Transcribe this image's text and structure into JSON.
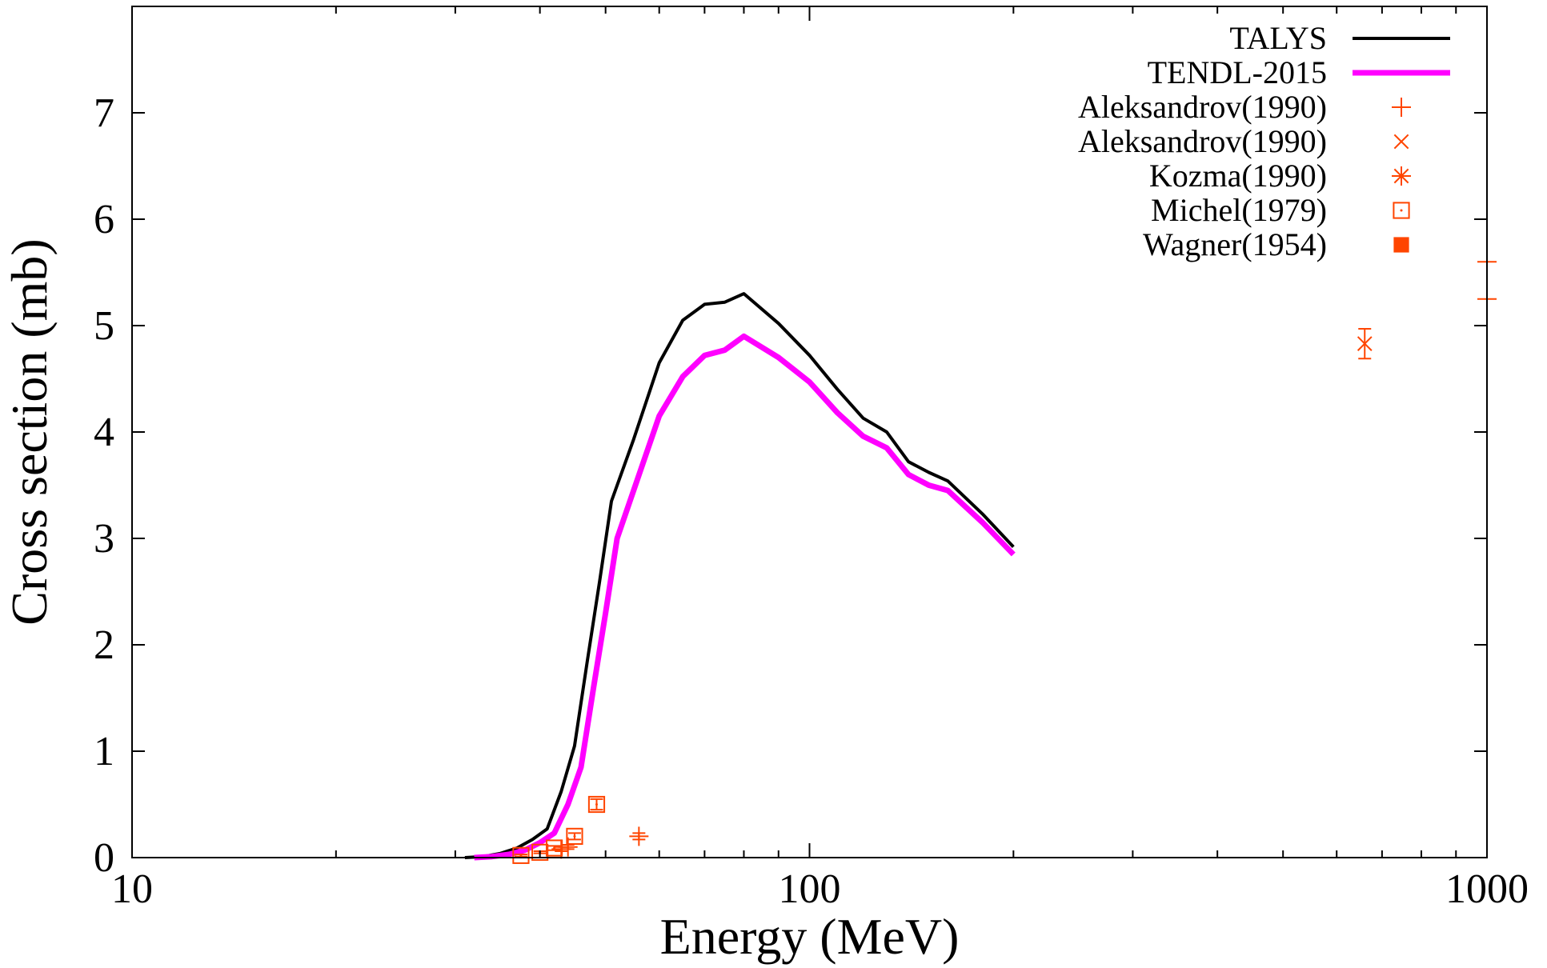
{
  "chart_data": {
    "type": "line",
    "xlabel": "Energy (MeV)",
    "ylabel": "Cross section (mb)",
    "xscale": "log",
    "xlim": [
      10,
      1000
    ],
    "ylim": [
      0,
      8
    ],
    "xticks": [
      10,
      100,
      1000
    ],
    "yticks": [
      0,
      1,
      2,
      3,
      4,
      5,
      6,
      7
    ],
    "grid": false,
    "legend_position": "top-right",
    "series": [
      {
        "name": "TALYS",
        "kind": "line",
        "color": "#000000",
        "x": [
          31,
          33,
          35,
          37,
          39,
          41,
          43,
          45,
          47,
          49,
          51,
          55,
          60,
          65,
          70,
          75,
          80,
          90,
          100,
          110,
          120,
          130,
          140,
          150,
          160,
          180,
          200
        ],
        "y": [
          0.0,
          0.01,
          0.04,
          0.09,
          0.17,
          0.27,
          0.62,
          1.05,
          1.85,
          2.6,
          3.35,
          3.93,
          4.65,
          5.05,
          5.2,
          5.22,
          5.3,
          5.02,
          4.72,
          4.4,
          4.13,
          4.0,
          3.72,
          3.62,
          3.54,
          3.23,
          2.92
        ]
      },
      {
        "name": "TENDL-2015",
        "kind": "line",
        "color": "#ff00ff",
        "x": [
          32,
          34,
          36,
          38,
          40,
          42,
          44,
          46,
          48,
          50,
          52,
          55,
          60,
          65,
          70,
          75,
          80,
          90,
          100,
          110,
          120,
          130,
          140,
          150,
          160,
          180,
          200
        ],
        "y": [
          0.0,
          0.01,
          0.03,
          0.07,
          0.14,
          0.23,
          0.5,
          0.85,
          1.6,
          2.3,
          3.0,
          3.45,
          4.15,
          4.52,
          4.72,
          4.77,
          4.9,
          4.7,
          4.47,
          4.18,
          3.96,
          3.85,
          3.6,
          3.5,
          3.45,
          3.15,
          2.85
        ]
      },
      {
        "name": "Aleksandrov(1990)",
        "kind": "points",
        "marker": "plus",
        "color": "#ff4500",
        "x": [
          44,
          56,
          43,
          1000,
          1000
        ],
        "y": [
          0.1,
          0.2,
          0.08,
          5.6,
          5.25
        ],
        "yerr": [
          0.02,
          0.03,
          0.02,
          0.0,
          0.0
        ]
      },
      {
        "name": "Aleksandrov(1990)",
        "kind": "points",
        "marker": "cross",
        "color": "#ff4500",
        "x": [
          660
        ],
        "y": [
          4.83
        ],
        "yerr": [
          0.14
        ]
      },
      {
        "name": "Kozma(1990)",
        "kind": "points",
        "marker": "star",
        "color": "#ff4500",
        "x": [],
        "y": []
      },
      {
        "name": "Michel(1979)",
        "kind": "points",
        "marker": "open-square",
        "color": "#ff4500",
        "x": [
          37.5,
          40,
          42,
          45,
          48.5
        ],
        "y": [
          0.02,
          0.05,
          0.09,
          0.2,
          0.5
        ],
        "yerr": [
          0.01,
          0.01,
          0.02,
          0.03,
          0.05
        ]
      },
      {
        "name": "Wagner(1954)",
        "kind": "points",
        "marker": "filled-square",
        "color": "#ff4500",
        "x": [],
        "y": []
      }
    ]
  }
}
